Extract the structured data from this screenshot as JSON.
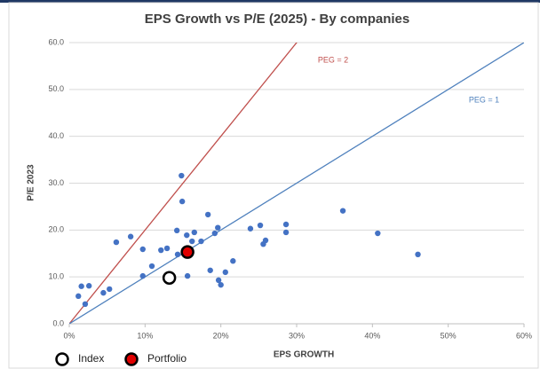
{
  "chart_data": {
    "type": "scatter",
    "title": "EPS Growth vs P/E (2025) - By companies",
    "x_label": "EPS GROWTH",
    "y_label": "P/E 2023",
    "xlim": [
      0,
      60
    ],
    "ylim": [
      0,
      60
    ],
    "xticks": [
      {
        "value": 0,
        "label": "0%"
      },
      {
        "value": 10,
        "label": "10%"
      },
      {
        "value": 20,
        "label": "20%"
      },
      {
        "value": 30,
        "label": "30%"
      },
      {
        "value": 40,
        "label": "40%"
      },
      {
        "value": 50,
        "label": "50%"
      },
      {
        "value": 60,
        "label": "60%"
      }
    ],
    "yticks": [
      {
        "value": 0,
        "label": "0.0"
      },
      {
        "value": 10,
        "label": "10.0"
      },
      {
        "value": 20,
        "label": "20.0"
      },
      {
        "value": 30,
        "label": "30.0"
      },
      {
        "value": 40,
        "label": "40.0"
      },
      {
        "value": 50,
        "label": "50.0"
      },
      {
        "value": 60,
        "label": "60.0"
      }
    ],
    "grid": true,
    "reference_lines": [
      {
        "label": "PEG = 2",
        "slope": 2,
        "color": "#c0504d"
      },
      {
        "label": "PEG = 1",
        "slope": 1,
        "color": "#4f81bd"
      }
    ],
    "series": [
      {
        "color": "#4472c4",
        "x": [
          1.2,
          1.6,
          2.6,
          2.1,
          4.5,
          5.3,
          6.2,
          8.1,
          9.7,
          9.7,
          10.9,
          12.1,
          12.9,
          14.2,
          14.8,
          14.9,
          14.3,
          15.5,
          15.6,
          16.2,
          16.5,
          17.4,
          18.3,
          18.6,
          19.2,
          19.6,
          19.7,
          20.0,
          20.6,
          21.6,
          23.9,
          25.2,
          25.6,
          25.9,
          28.6,
          28.6,
          36.1,
          40.7,
          46.0
        ],
        "values": [
          5.9,
          8.0,
          8.1,
          4.2,
          6.6,
          7.4,
          17.4,
          18.6,
          15.9,
          10.2,
          12.3,
          15.7,
          16.1,
          19.9,
          31.6,
          26.1,
          14.8,
          18.9,
          10.2,
          17.6,
          19.5,
          17.6,
          23.3,
          11.4,
          19.3,
          20.5,
          9.3,
          8.3,
          11.0,
          13.4,
          20.3,
          21.0,
          17.0,
          17.8,
          21.2,
          19.5,
          24.1,
          19.3,
          14.8
        ]
      },
      {
        "name": "Index",
        "color": "#ffffff",
        "x": [
          13.2
        ],
        "values": [
          9.8
        ]
      },
      {
        "name": "Portfolio",
        "color": "#e00000",
        "x": [
          15.6
        ],
        "values": [
          15.3
        ]
      }
    ]
  }
}
